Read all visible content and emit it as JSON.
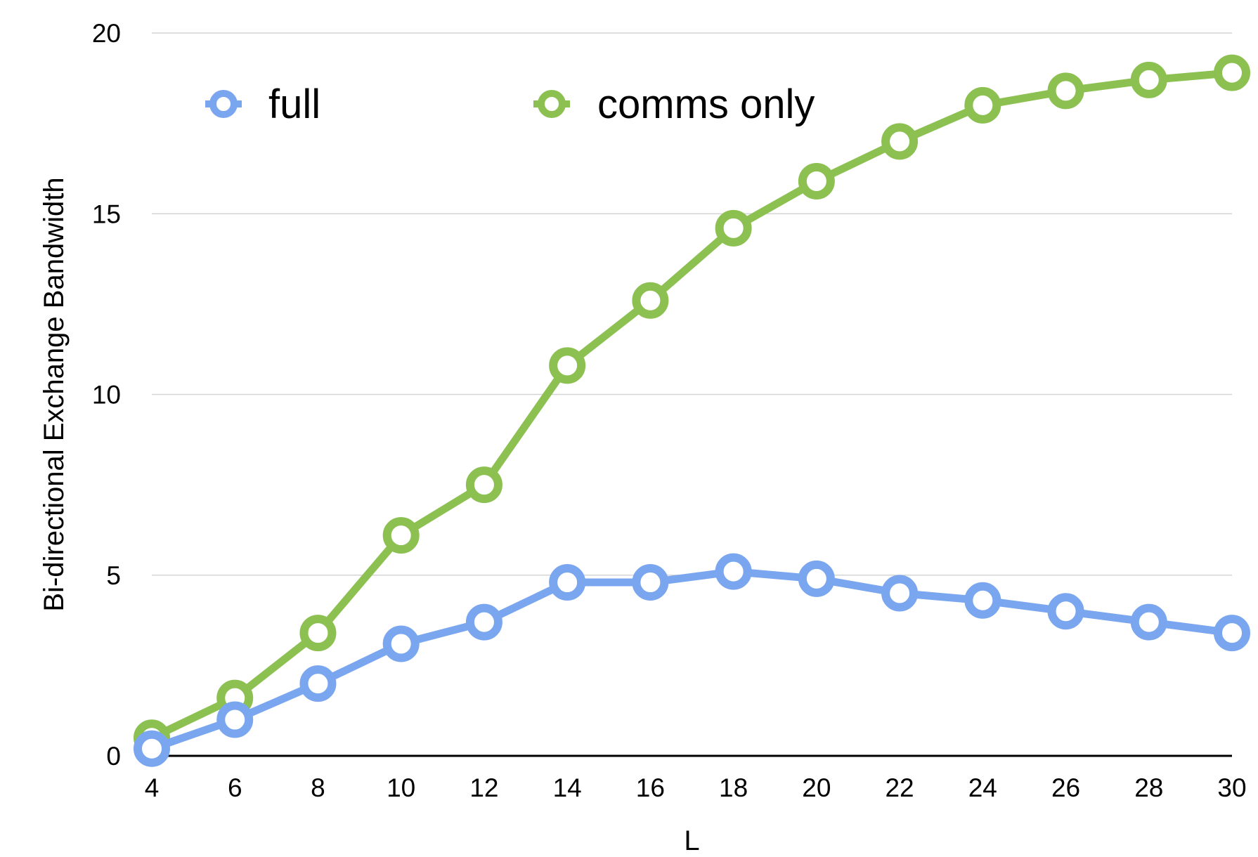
{
  "chart_data": {
    "type": "line",
    "title": "",
    "xlabel": "L",
    "ylabel": "Bi-directional Exchange Bandwidth",
    "x": [
      4,
      6,
      8,
      10,
      12,
      14,
      16,
      18,
      20,
      22,
      24,
      26,
      28,
      30
    ],
    "x_ticks": [
      "4",
      "6",
      "8",
      "10",
      "12",
      "14",
      "16",
      "18",
      "20",
      "22",
      "24",
      "26",
      "28",
      "30"
    ],
    "y_ticks": [
      "0",
      "5",
      "10",
      "15",
      "20"
    ],
    "xlim": [
      4,
      30
    ],
    "ylim": [
      0,
      20
    ],
    "grid": "horizontal",
    "legend_position": "top-left",
    "series": [
      {
        "name": "full",
        "color": "#7aa6f0",
        "values": [
          0.2,
          1.0,
          2.0,
          3.1,
          3.7,
          4.8,
          4.8,
          5.1,
          4.9,
          4.5,
          4.3,
          4.0,
          3.7,
          3.4
        ]
      },
      {
        "name": "comms only",
        "color": "#8cc152",
        "values": [
          0.5,
          1.6,
          3.4,
          6.1,
          7.5,
          10.8,
          12.6,
          14.6,
          15.9,
          17.0,
          18.0,
          18.4,
          18.7,
          18.9
        ]
      }
    ]
  }
}
